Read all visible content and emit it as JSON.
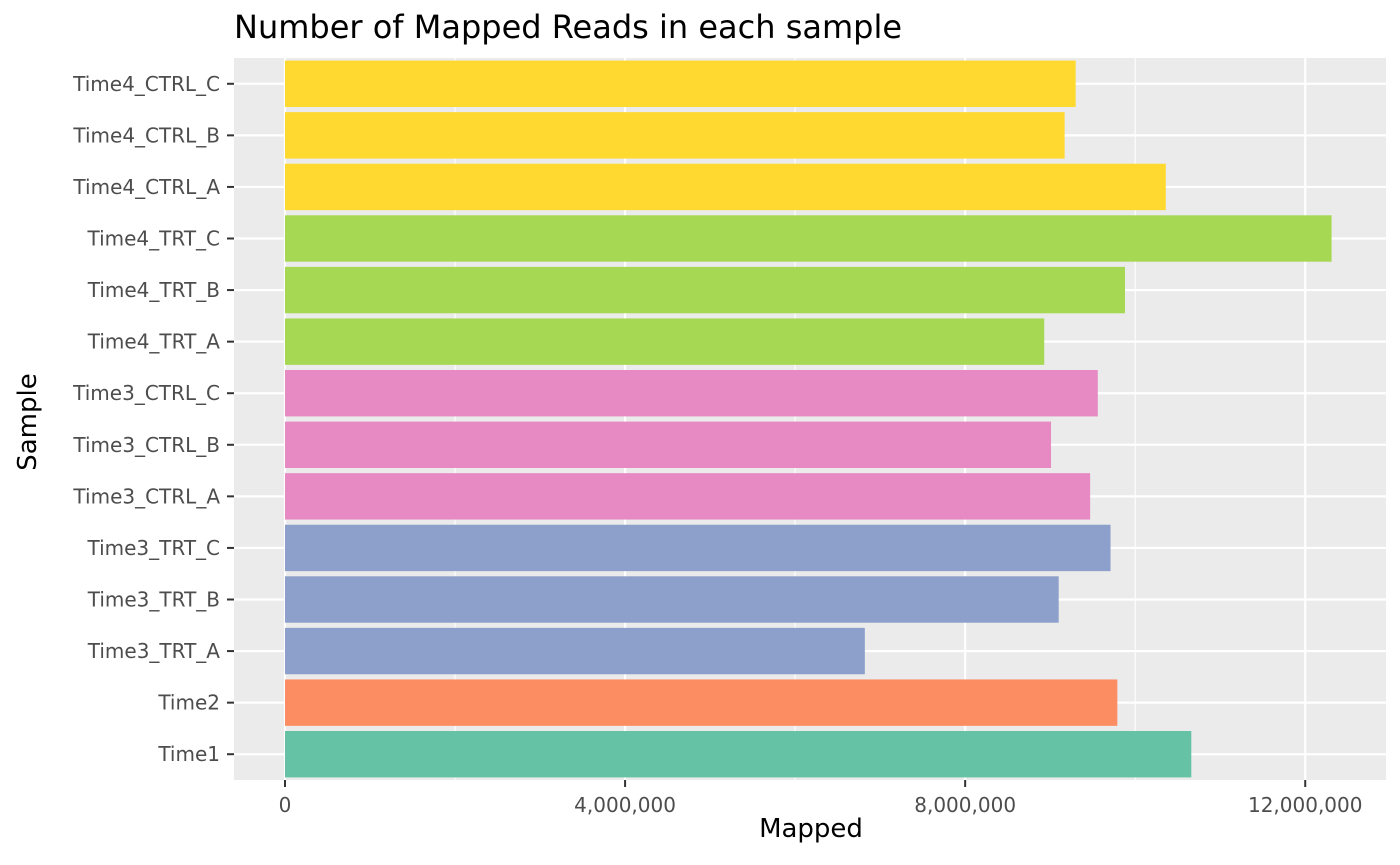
{
  "chart_data": {
    "type": "bar",
    "orientation": "horizontal",
    "title": "Number of Mapped Reads in each sample",
    "xlabel": "Mapped",
    "ylabel": "Sample",
    "xlim": [
      -600000,
      12950000
    ],
    "x_ticks": [
      0,
      4000000,
      8000000,
      12000000
    ],
    "x_tick_labels": [
      "0",
      "4,000,000",
      "8,000,000",
      "12,000,000"
    ],
    "grid": true,
    "legend": "none",
    "categories": [
      "Time1",
      "Time2",
      "Time3_TRT_A",
      "Time3_TRT_B",
      "Time3_TRT_C",
      "Time3_CTRL_A",
      "Time3_CTRL_B",
      "Time3_CTRL_C",
      "Time4_TRT_A",
      "Time4_TRT_B",
      "Time4_TRT_C",
      "Time4_CTRL_A",
      "Time4_CTRL_B",
      "Time4_CTRL_C"
    ],
    "values": [
      10660000,
      9790000,
      6820000,
      9100000,
      9710000,
      9470000,
      9010000,
      9560000,
      8930000,
      9880000,
      12310000,
      10360000,
      9170000,
      9300000
    ],
    "colors": [
      "#66c2a5",
      "#fc8d62",
      "#8da0cb",
      "#8da0cb",
      "#8da0cb",
      "#e78ac3",
      "#e78ac3",
      "#e78ac3",
      "#a6d854",
      "#a6d854",
      "#a6d854",
      "#ffd92f",
      "#ffd92f",
      "#ffd92f"
    ],
    "panel_background": "#ebebeb",
    "grid_color": "#ffffff"
  }
}
